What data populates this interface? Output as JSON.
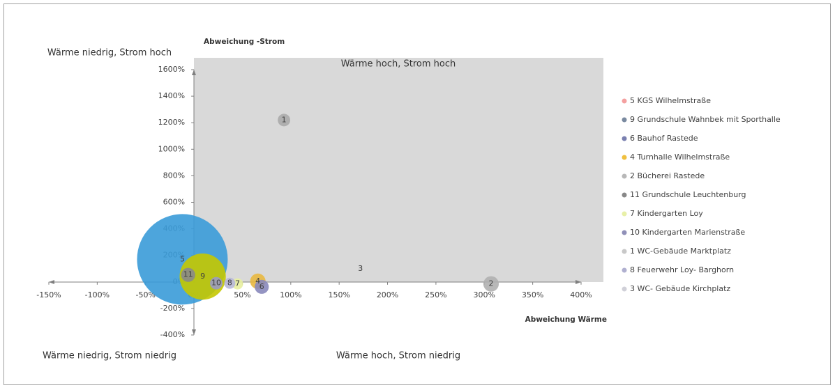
{
  "chart_data": {
    "type": "bubble",
    "y_axis_title": "Abweichung -Strom",
    "x_axis_title": "Abweichung Wärme",
    "quadrant_labels": [
      "Wärme niedrig, Strom hoch",
      "Wärme hoch, Strom hoch",
      "Wärme niedrig, Strom niedrig",
      "Wärme hoch, Strom niedrig"
    ],
    "xlim": [
      -150,
      400
    ],
    "ylim": [
      -400,
      1600
    ],
    "xticks": [
      {
        "value": -150,
        "label": "-150%"
      },
      {
        "value": -100,
        "label": "-100%"
      },
      {
        "value": -50,
        "label": "-50%"
      },
      {
        "value": 0,
        "label": "0%"
      },
      {
        "value": 50,
        "label": "50%"
      },
      {
        "value": 100,
        "label": "100%"
      },
      {
        "value": 150,
        "label": "150%"
      },
      {
        "value": 200,
        "label": "200%"
      },
      {
        "value": 250,
        "label": "250%"
      },
      {
        "value": 300,
        "label": "300%"
      },
      {
        "value": 350,
        "label": "350%"
      },
      {
        "value": 400,
        "label": "400%"
      }
    ],
    "yticks": [
      {
        "value": -400,
        "label": "-400%"
      },
      {
        "value": -200,
        "label": "-200%"
      },
      {
        "value": 0,
        "label": "0%"
      },
      {
        "value": 200,
        "label": "200%"
      },
      {
        "value": 400,
        "label": "400%"
      },
      {
        "value": 600,
        "label": "600%"
      },
      {
        "value": 800,
        "label": "800%"
      },
      {
        "value": 1000,
        "label": "1000%"
      },
      {
        "value": 1200,
        "label": "1200%"
      },
      {
        "value": 1400,
        "label": "1400%"
      },
      {
        "value": 1600,
        "label": "1600%"
      }
    ],
    "grid": false,
    "legend": "right",
    "series": [
      {
        "name": "5 KGS Wilhelmstraße",
        "label": "5",
        "color": "#3a9bd8",
        "legend_color": "#f4a0a0",
        "x": [
          -12
        ],
        "y": [
          170
        ],
        "size": [
          100
        ]
      },
      {
        "name": "9 Grundschule Wahnbek mit Sporthalle",
        "label": "9",
        "color": "#c4c800",
        "legend_color": "#7a8aa0",
        "x": [
          9
        ],
        "y": [
          40
        ],
        "size": [
          26
        ]
      },
      {
        "name": "6 Bauhof Rastede",
        "label": "6",
        "color": "#8888bb",
        "legend_color": "#7a80b0",
        "x": [
          70
        ],
        "y": [
          -37
        ],
        "size": [
          2.4
        ]
      },
      {
        "name": "4 Turnhalle Wilhelmstraße",
        "label": "4",
        "color": "#e8b840",
        "legend_color": "#f0c040",
        "x": [
          66
        ],
        "y": [
          5
        ],
        "size": [
          2.9
        ]
      },
      {
        "name": "2 Bücherei Rastede",
        "label": "2",
        "color": "#b0b0b0",
        "legend_color": "#b8b8b8",
        "x": [
          307
        ],
        "y": [
          -15
        ],
        "size": [
          2.9
        ]
      },
      {
        "name": "11 Grundschule Leuchtenburg",
        "label": "11",
        "color": "#8a8a8a",
        "legend_color": "#888888",
        "x": [
          -6
        ],
        "y": [
          53
        ],
        "size": [
          2.4
        ]
      },
      {
        "name": "7 Kindergarten Loy",
        "label": "7",
        "color": "#e8f0a0",
        "legend_color": "#e8f0a8",
        "x": [
          45
        ],
        "y": [
          -15
        ],
        "size": [
          1.5
        ]
      },
      {
        "name": "10 Kindergarten Marienstraße",
        "label": "10",
        "color": "#9b9bc0",
        "legend_color": "#9090b8",
        "x": [
          23
        ],
        "y": [
          -10
        ],
        "size": [
          1.9
        ]
      },
      {
        "name": "1 WC-Gebäude Marktplatz",
        "label": "1",
        "color": "#aaaaaa",
        "legend_color": "#c8c8c8",
        "x": [
          93
        ],
        "y": [
          1220
        ],
        "size": [
          1.9
        ]
      },
      {
        "name": "8 Feuerwehr Loy- Barghorn",
        "label": "8",
        "color": "#b8b8d8",
        "legend_color": "#b0b0d0",
        "x": [
          37
        ],
        "y": [
          -10
        ],
        "size": [
          1.5
        ]
      },
      {
        "name": "3 WC- Gebäude Kirchplatz",
        "label": "3",
        "color": "#cccccc",
        "legend_color": "#d0d0d8",
        "x": [
          172
        ],
        "y": [
          100
        ],
        "size": [
          0.2
        ]
      }
    ]
  }
}
